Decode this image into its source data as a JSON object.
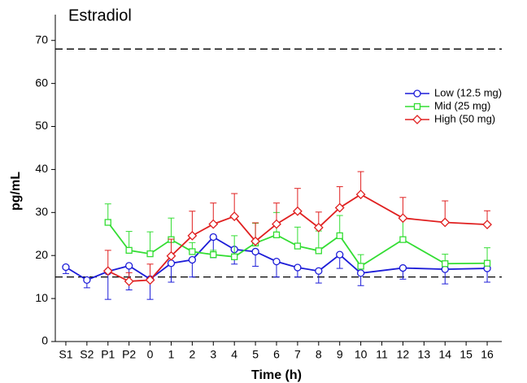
{
  "chart_data": {
    "type": "line",
    "title": "Estradiol",
    "x_label": "Time (h)",
    "y_label": "pg/mL",
    "categories": [
      "S1",
      "S2",
      "P1",
      "P2",
      "0",
      "1",
      "2",
      "3",
      "4",
      "5",
      "6",
      "7",
      "8",
      "9",
      "10",
      "11",
      "12",
      "13",
      "14",
      "15",
      "16"
    ],
    "ylim": [
      0,
      76
    ],
    "yticks": [
      0,
      10,
      20,
      30,
      40,
      50,
      60,
      70
    ],
    "reference_lines": [
      68,
      15
    ],
    "legend_position": "upper right",
    "series": [
      {
        "name": "Low (12.5 mg)",
        "color": "#1c1cd8",
        "marker": "circle",
        "error_direction": "down",
        "x": [
          "S1",
          "S2",
          "P1",
          "P2",
          "0",
          "1",
          "2",
          "3",
          "4",
          "5",
          "6",
          "7",
          "8",
          "9",
          "10",
          "12",
          "14",
          "16"
        ],
        "values": [
          17.3,
          14.3,
          16.3,
          17.6,
          14.5,
          18.2,
          19.0,
          24.3,
          21.4,
          20.9,
          18.6,
          17.2,
          16.4,
          20.2,
          15.9,
          17.1,
          16.8,
          17.0
        ],
        "errors": [
          1.5,
          1.8,
          6.5,
          5.6,
          4.7,
          4.4,
          4.0,
          4.8,
          3.4,
          3.4,
          3.6,
          2.2,
          2.8,
          3.2,
          2.9,
          2.6,
          3.4,
          3.2
        ]
      },
      {
        "name": "Mid (25 mg)",
        "color": "#33dd33",
        "marker": "square",
        "error_direction": "up",
        "x": [
          "P1",
          "P2",
          "0",
          "1",
          "2",
          "3",
          "4",
          "5",
          "6",
          "7",
          "8",
          "9",
          "10",
          "12",
          "14",
          "16"
        ],
        "values": [
          27.7,
          21.2,
          20.4,
          23.7,
          20.9,
          20.2,
          19.7,
          22.9,
          24.8,
          22.2,
          21.1,
          24.6,
          17.5,
          23.7,
          18.1,
          18.2
        ],
        "errors": [
          4.3,
          4.4,
          5.1,
          5.0,
          2.1,
          1.0,
          4.9,
          4.6,
          5.2,
          4.4,
          4.6,
          4.7,
          2.7,
          5.0,
          2.2,
          3.6
        ]
      },
      {
        "name": "High (50 mg)",
        "color": "#e02020",
        "marker": "diamond",
        "error_direction": "up",
        "x": [
          "P1",
          "P2",
          "0",
          "1",
          "2",
          "3",
          "4",
          "5",
          "6",
          "7",
          "8",
          "9",
          "10",
          "12",
          "14",
          "16"
        ],
        "values": [
          16.4,
          14.0,
          14.3,
          19.9,
          24.6,
          27.3,
          29.1,
          23.3,
          27.3,
          30.3,
          26.5,
          31.1,
          34.2,
          28.7,
          27.7,
          27.2
        ],
        "errors": [
          4.8,
          2.0,
          3.7,
          3.9,
          5.7,
          4.9,
          5.3,
          4.3,
          4.9,
          5.3,
          3.6,
          4.9,
          5.3,
          4.8,
          5.0,
          3.2
        ]
      }
    ]
  }
}
